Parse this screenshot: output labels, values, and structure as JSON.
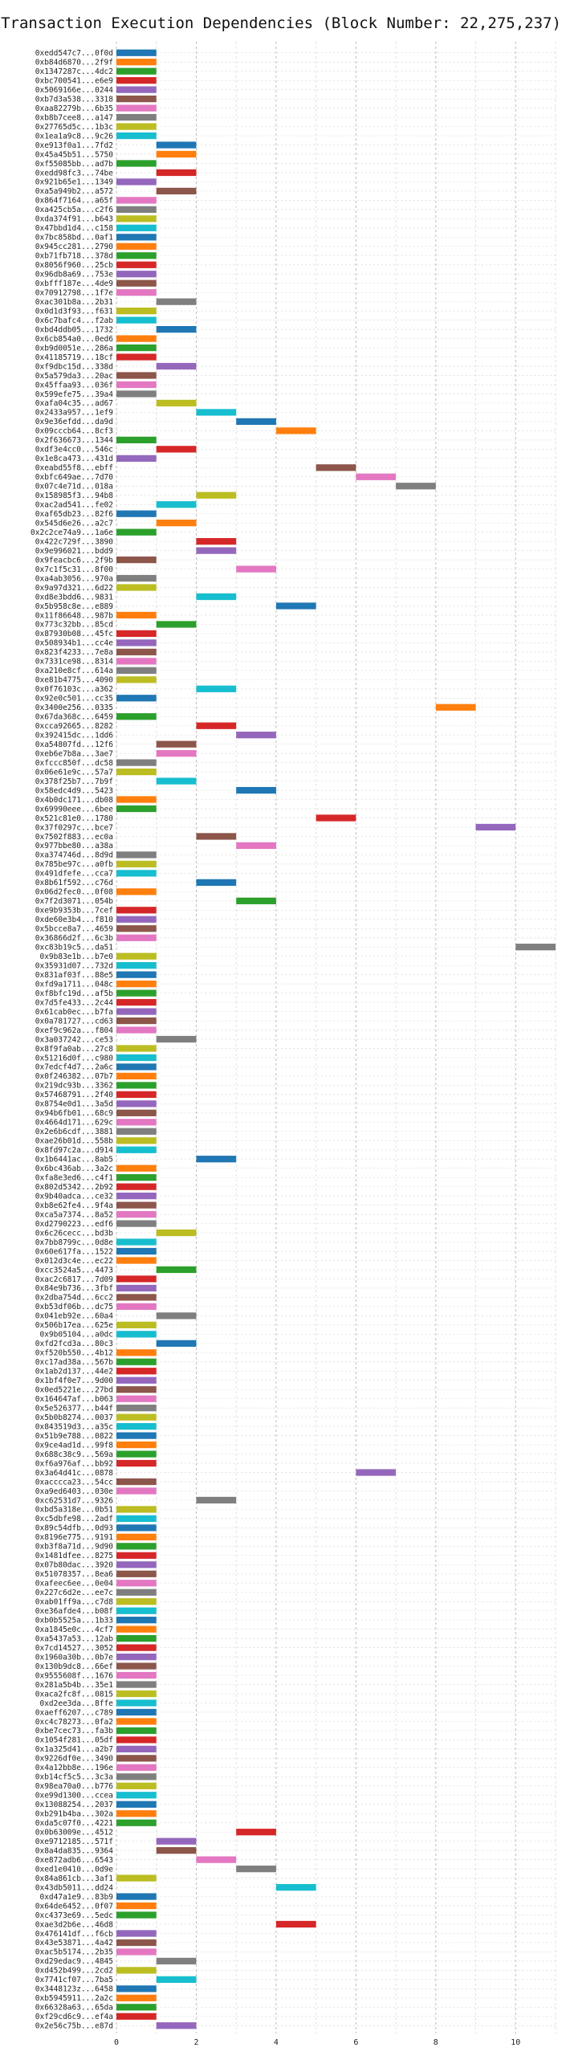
{
  "chart_data": {
    "type": "bar",
    "orientation": "horizontal-gantt",
    "title": "Transaction Execution Dependencies (Block Number: 22,275,237)",
    "xlabel": "",
    "ylabel": "",
    "xlim": [
      0,
      11
    ],
    "xticks": [
      0,
      2,
      4,
      6,
      8,
      10
    ],
    "grid": true,
    "bar_duration": 1,
    "palette": [
      "#1f77b4",
      "#ff7f0e",
      "#2ca02c",
      "#d62728",
      "#9467bd",
      "#8c564b",
      "#e377c2",
      "#7f7f7f",
      "#bcbd22",
      "#17becf"
    ],
    "categories": [
      "0xedd547c7...0f0d",
      "0xb84d6870...2f9f",
      "0x1347287c...4dc2",
      "0xbc700541...e6e9",
      "0x5069166e...0244",
      "0xb7d3a538...3318",
      "0xaa82279b...6b35",
      "0xb8b7cee8...a147",
      "0x27765d5c...1b3c",
      "0x1ea1a9c8...9c26",
      "0xe913f0a1...7fd2",
      "0x45a45b51...5750",
      "0xf55085bb...ad7b",
      "0xedd98fc3...74be",
      "0x921b65e1...1349",
      "0xa5a949b2...a572",
      "0x864f7164...a65f",
      "0xa425cb5a...c2f6",
      "0xda374f91...b643",
      "0x47bbd1d4...c158",
      "0x7bc858bd...0af1",
      "0x945cc281...2790",
      "0xb71fb718...378d",
      "0x8056f960...25cb",
      "0x96db8a69...753e",
      "0xbfff187e...4de9",
      "0x70912798...1f7e",
      "0xac301b8a...2b31",
      "0x0d1d3f93...f631",
      "0x6c7bafc4...f2ab",
      "0xbd4ddb05...1732",
      "0x6cb854a0...0ed6",
      "0xb9d0051e...286a",
      "0x41185719...18cf",
      "0xf9dbc15d...338d",
      "0x5a579da3...20ac",
      "0x45ffaa93...036f",
      "0x599efe75...39a4",
      "0xafa04c35...ad67",
      "0x2433a957...1ef9",
      "0x9e36efdd...da9d",
      "0x09cccb64...8cf3",
      "0x2f636673...1344",
      "0xdf3e4cc0...546c",
      "0x1e8ca473...431d",
      "0xeabd55f8...ebff",
      "0xbfc649ae...7d70",
      "0x07c4e71d...018a",
      "0x158985f3...94b8",
      "0xac2ad541...fe02",
      "0xaf65db23...82f6",
      "0x545d6e26...a2c7",
      "0x2c2ce74a9...1a6e",
      "0x422c729f...3890",
      "0x9e996021...bdd9",
      "0x9feacbc6...2f9b",
      "0x7c1f5c31...8f00",
      "0xa4ab3056...970a",
      "0x9a97d321...6d22",
      "0xd8e3bdd6...9831",
      "0x5b958c8e...e889",
      "0x11f86648...987b",
      "0x773c32bb...85cd",
      "0x87930b08...45fc",
      "0x508934b1...cc4e",
      "0x823f4233...7e8a",
      "0x7331ce98...8314",
      "0xa210e8cf...614a",
      "0xe81b4775...4090",
      "0x0f76103c...a362",
      "0x92e0c501...cc35",
      "0x3400e256...0335",
      "0x67da368c...6459",
      "0xcca92665...8282",
      "0x392415dc...1dd6",
      "0xa54807fd...12f6",
      "0xeb6e7b8a...3ae7",
      "0xfccc850f...dc58",
      "0x06e61e9c...57a7",
      "0x378f25b7...7b9f",
      "0x58edc4d9...5423",
      "0x4b0dc171...db08",
      "0x69990eee...6bee",
      "0x521c81e0...1780",
      "0x37f0297c...bce7",
      "0x7502f883...ec0a",
      "0x977bbe80...a38a",
      "0xa374746d...8d9d",
      "0x785be97c...a0fb",
      "0x491dfefe...cca7",
      "0x8b61f592...c76d",
      "0x06d2fec0...0f08",
      "0x7f2d3071...054b",
      "0xe9b9353b...7cef",
      "0xde60e3b4...f810",
      "0x5bcce8a7...4659",
      "0x36866d2f...6c3b",
      "0xc83b19c5...da51",
      "0x9b83e1b...b7e0",
      "0x35931d07...732d",
      "0x831af03f...88e5",
      "0xfd9a1711...048c",
      "0xf8bfc19d...af5b",
      "0x7d5fe433...2c44",
      "0x61cab0ec...b7fa",
      "0x0a781727...cd63",
      "0xef9c962a...f804",
      "0x3a037242...ce53",
      "0x8f9fa0ab...27c8",
      "0x51216d0f...c980",
      "0x7edcf4d7...2a6c",
      "0x0f246382...07b7",
      "0x219dc93b...3362",
      "0x57468791...2f40",
      "0x8754e0d1...3a5d",
      "0x94b6fb01...68c9",
      "0x4664d171...629c",
      "0x2e6b6cdf...3881",
      "0xae26b01d...558b",
      "0x8fd97c2a...d914",
      "0x1b6441ac...8ab5",
      "0x6bc436ab...3a2c",
      "0xfa8e3ed6...c4f1",
      "0x802d5342...2b92",
      "0x9b40adca...ce32",
      "0xb8e62fe4...9f4a",
      "0xca5a7374...8a52",
      "0xd2790223...edf6",
      "0x6c26cecc...bd3b",
      "0x7bb8799c...0d8e",
      "0x60e617fa...1522",
      "0x012d3c4e...ec22",
      "0xcc3524a5...4473",
      "0xac2c6817...7d09",
      "0x84e9b736...3fbf",
      "0x2dba754d...6cc2",
      "0xb53df06b...dc75",
      "0x041eb92e...60a4",
      "0x506b17ea...625e",
      "0x9b05104...a0dc",
      "0xfd2fcd3a...80c3",
      "0xf520b550...4b12",
      "0xc17ad38a...567b",
      "0x1ab2d137...44e2",
      "0x1bf4f0e7...9d00",
      "0x0ed5221e...27bd",
      "0x164647af...b063",
      "0x5e526377...b44f",
      "0x5b0b8274...0037",
      "0x843519d3...a35c",
      "0x51b9e788...0822",
      "0x9ce4ad1d...99f8",
      "0x688c38c9...569a",
      "0xf6a976af...bb92",
      "0x3a64d41c...0878",
      "0xacccca23...54cc",
      "0xa9ed6403...030e",
      "0xc62531d7...9326",
      "0xbd5a318e...0b51",
      "0xc5dbfe98...2adf",
      "0x89c54dfb...0d93",
      "0x8196e775...9191",
      "0xb3f8a71d...9d90",
      "0x1481dfee...8275",
      "0x07b80dac...3920",
      "0x51078357...8ea6",
      "0xafeec6ee...0e04",
      "0x227c6d2e...ee7c",
      "0xab01ff9a...c7d8",
      "0xe36afde4...b08f",
      "0xb0b5525a...1b33",
      "0xa1845e0c...4cf7",
      "0xa5437a53...12ab",
      "0x7cd14527...3052",
      "0x1960a30b...0b7e",
      "0x130b9dc8...66ef",
      "0x9555608f...1676",
      "0x281a5b4b...35e1",
      "0xaca2fc8f...0815",
      "0xd2ee3da...8ffe",
      "0xaeff6207...c789",
      "0xc4c78273...0fa2",
      "0xbe7cec73...fa3b",
      "0x1054f281...05df",
      "0x1a325d41...a2b7",
      "0x9226df0e...3490",
      "0x4a12bb8e...196e",
      "0xb14cf5c5...3c3a",
      "0x98ea70a0...b776",
      "0xe99d1300...ccea",
      "0x13088254...2037",
      "0xb291b4ba...302a",
      "0xda5c07f0...4221",
      "0x0b63009e...4512",
      "0xe9712185...571f",
      "0x8a4da835...9364",
      "0xe872adb6...6543",
      "0xed1e0410...0d9e",
      "0x84a861cb...3af1",
      "0x43db5011...dd24",
      "0xd47a1e9...83b9",
      "0x64de6452...0f07",
      "0xc4373e69...5edc",
      "0xae3d2b6e...46d8",
      "0x476141df...f6cb",
      "0x43e53871...4a42",
      "0xac5b5174...2b35",
      "0xd29edac9...4845",
      "0xd452b499...2cd2",
      "0x7741cf07...7ba5",
      "0x3448123z...6458",
      "0xb5945911...2a2c",
      "0x66328a63...65da",
      "0xf29cd6c9...ef4a",
      "0x2e56c75b...e87d"
    ],
    "start_times": [
      0,
      0,
      0,
      0,
      0,
      0,
      0,
      0,
      0,
      0,
      1,
      1,
      0,
      1,
      0,
      1,
      0,
      0,
      0,
      0,
      0,
      0,
      0,
      0,
      0,
      0,
      0,
      1,
      0,
      0,
      1,
      0,
      0,
      0,
      1,
      0,
      0,
      0,
      1,
      2,
      3,
      4,
      0,
      1,
      0,
      5,
      6,
      7,
      2,
      1,
      0,
      1,
      0,
      2,
      2,
      0,
      3,
      0,
      0,
      2,
      4,
      0,
      1,
      0,
      0,
      0,
      0,
      0,
      0,
      2,
      0,
      8,
      0,
      2,
      3,
      1,
      1,
      0,
      0,
      1,
      3,
      0,
      0,
      5,
      9,
      2,
      3,
      0,
      0,
      0,
      2,
      0,
      3,
      0,
      0,
      0,
      0,
      10,
      0,
      0,
      0,
      0,
      0,
      0,
      0,
      0,
      0,
      1,
      0,
      0,
      0,
      0,
      0,
      0,
      0,
      0,
      0,
      0,
      0,
      0,
      2,
      0,
      0,
      0,
      0,
      0,
      0,
      0,
      1,
      0,
      0,
      0,
      1,
      0,
      0,
      0,
      0,
      1,
      0,
      0,
      1,
      0,
      0,
      0,
      0,
      0,
      0,
      0,
      0,
      0,
      0,
      0,
      0,
      0,
      6,
      0,
      0,
      2,
      0,
      0,
      0,
      0,
      0,
      0,
      0,
      0,
      0,
      0,
      0,
      0,
      0,
      0,
      0,
      0,
      0,
      0,
      0,
      0,
      0,
      0,
      0,
      0,
      0,
      0,
      0,
      0,
      0,
      0,
      0,
      0,
      0,
      0,
      0,
      3,
      1,
      1,
      2,
      3,
      0,
      4,
      0,
      0,
      0,
      4,
      0,
      0,
      0,
      1,
      0,
      1,
      0,
      0,
      0,
      0,
      1,
      0,
      0
    ],
    "color_indices": [
      0,
      1,
      2,
      3,
      4,
      5,
      6,
      7,
      8,
      9,
      0,
      1,
      2,
      3,
      4,
      5,
      6,
      7,
      8,
      9,
      0,
      1,
      2,
      3,
      4,
      5,
      6,
      7,
      8,
      9,
      0,
      1,
      2,
      3,
      4,
      5,
      6,
      7,
      8,
      9,
      0,
      1,
      2,
      3,
      4,
      5,
      6,
      7,
      8,
      9,
      0,
      1,
      2,
      3,
      4,
      5,
      6,
      7,
      8,
      9,
      0,
      1,
      2,
      3,
      4,
      5,
      6,
      7,
      8,
      9,
      0,
      1,
      2,
      3,
      4,
      5,
      6,
      7,
      8,
      9,
      0,
      1,
      2,
      3,
      4,
      5,
      6,
      7,
      8,
      9,
      0,
      1,
      2,
      3,
      4,
      5,
      6,
      7,
      8,
      9,
      0,
      1,
      2,
      3,
      4,
      5,
      6,
      7,
      8,
      9,
      0,
      1,
      2,
      3,
      4,
      5,
      6,
      7,
      8,
      9,
      0,
      1,
      2,
      3,
      4,
      5,
      6,
      7,
      8,
      9,
      0,
      1,
      2,
      3,
      4,
      5,
      6,
      7,
      8,
      9,
      0,
      1,
      2,
      3,
      4,
      5,
      6,
      7,
      8,
      9,
      0,
      1,
      2,
      3,
      4,
      5,
      6,
      7,
      8,
      9,
      0,
      1,
      2,
      3,
      4,
      5,
      6,
      7,
      8,
      9,
      0,
      1,
      2,
      3,
      4,
      5,
      6,
      7,
      8,
      9,
      0,
      1,
      2,
      3,
      4,
      5,
      6,
      7,
      8,
      9,
      0,
      1,
      2,
      3,
      4,
      5,
      6,
      7,
      8,
      9,
      0,
      1,
      2,
      3,
      4,
      5,
      6,
      7,
      8,
      9,
      0,
      1,
      2,
      3,
      4,
      5,
      6,
      7,
      8,
      9,
      0,
      1,
      2,
      3,
      4,
      5,
      6,
      7,
      8,
      9,
      0,
      1,
      2,
      3,
      4,
      5
    ]
  }
}
